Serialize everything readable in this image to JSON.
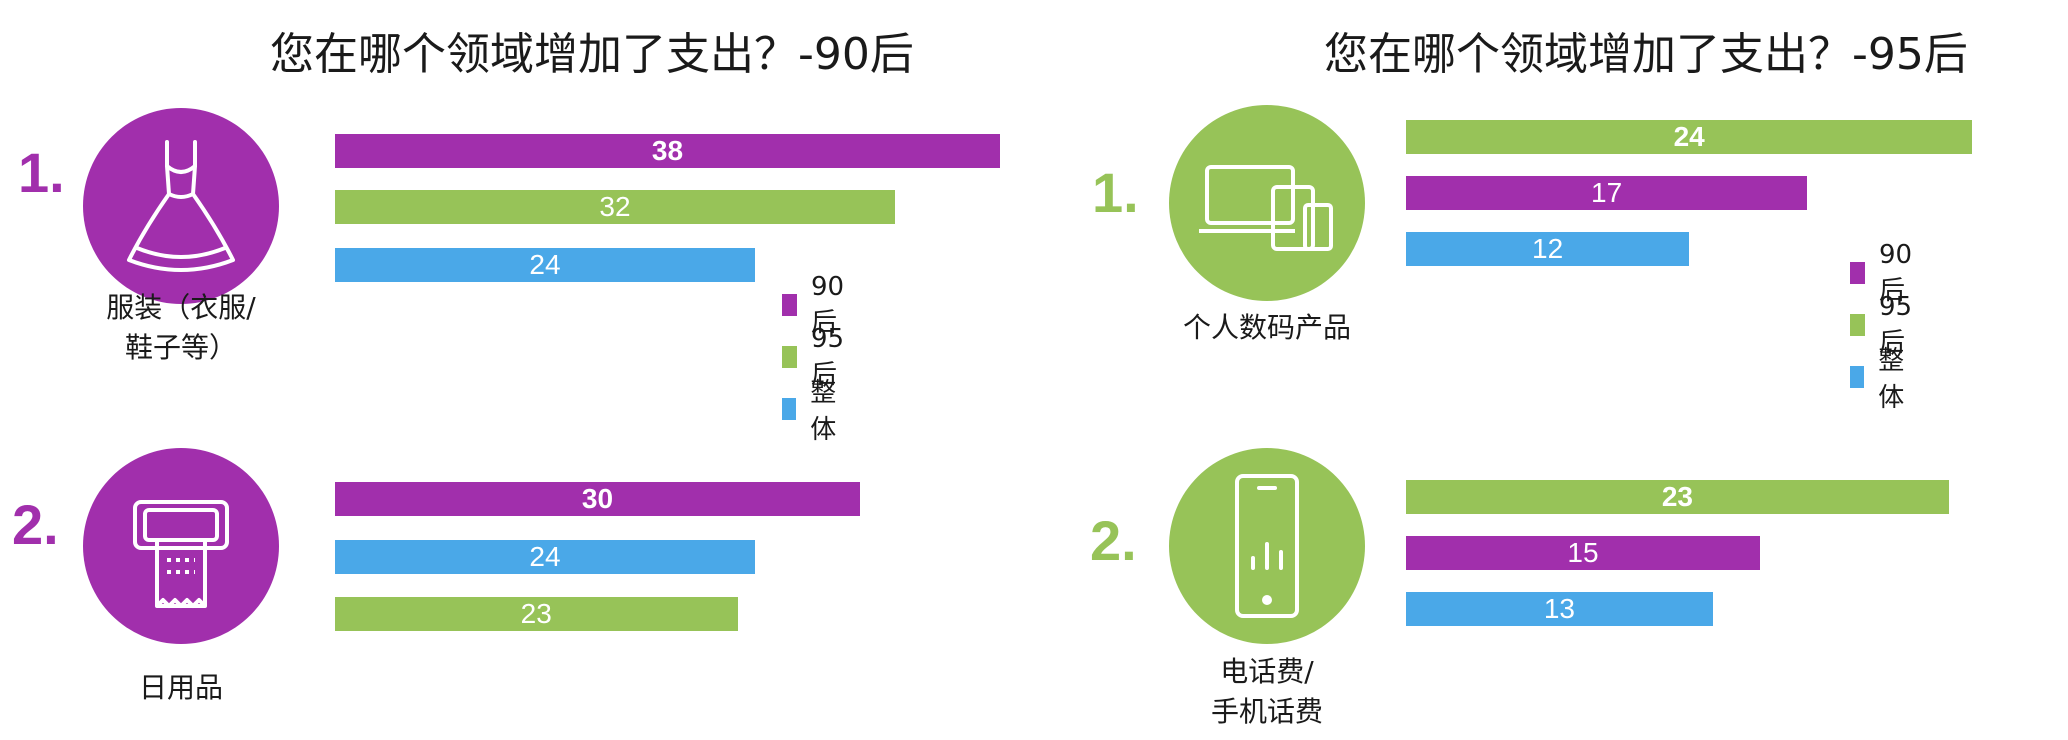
{
  "colors": {
    "purple": "#a12fac",
    "green": "#97c358",
    "blue": "#4aa8e8"
  },
  "legend_labels": [
    "90后",
    "95后",
    "整体"
  ],
  "chart_data": [
    {
      "type": "bar",
      "orientation": "horizontal",
      "title": "您在哪个领域增加了支出？-90后",
      "legend": [
        "90后",
        "95后",
        "整体"
      ],
      "legend_placement": "right",
      "categories": [
        {
          "rank": "1.",
          "label_lines": [
            "服装（衣服/",
            "鞋子等）"
          ],
          "icon": "dress-icon",
          "bars": [
            {
              "series": "90后",
              "value": 38
            },
            {
              "series": "95后",
              "value": 32
            },
            {
              "series": "整体",
              "value": 24
            }
          ]
        },
        {
          "rank": "2.",
          "label_lines": [
            "日用品"
          ],
          "icon": "tissue-icon",
          "bars": [
            {
              "series": "90后",
              "value": 30
            },
            {
              "series": "整体",
              "value": 24
            },
            {
              "series": "95后",
              "value": 23
            }
          ]
        }
      ]
    },
    {
      "type": "bar",
      "orientation": "horizontal",
      "title": "您在哪个领域增加了支出？-95后",
      "legend": [
        "90后",
        "95后",
        "整体"
      ],
      "legend_placement": "right",
      "categories": [
        {
          "rank": "1.",
          "label_lines": [
            "个人数码产品"
          ],
          "icon": "devices-icon",
          "bars": [
            {
              "series": "95后",
              "value": 24
            },
            {
              "series": "90后",
              "value": 17
            },
            {
              "series": "整体",
              "value": 12
            }
          ]
        },
        {
          "rank": "2.",
          "label_lines": [
            "电话费/",
            "手机话费"
          ],
          "icon": "phone-icon",
          "bars": [
            {
              "series": "95后",
              "value": 23
            },
            {
              "series": "90后",
              "value": 15
            },
            {
              "series": "整体",
              "value": 13
            }
          ]
        }
      ]
    }
  ]
}
